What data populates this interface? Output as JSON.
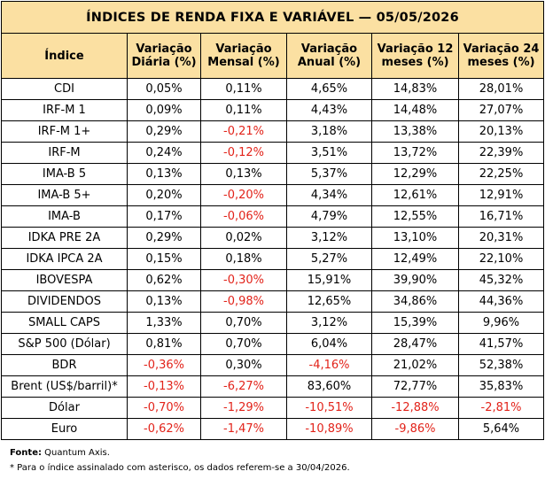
{
  "title": "ÍNDICES DE RENDA FIXA E VARIÁVEL — 05/05/2026",
  "headers": [
    "Índice",
    "Variação Diária (%)",
    "Variação Mensal (%)",
    "Variação Anual (%)",
    "Variação 12 meses (%)",
    "Variação 24 meses (%)"
  ],
  "rows": [
    {
      "name": "CDI",
      "values": [
        "0,05%",
        "0,11%",
        "4,65%",
        "14,83%",
        "28,01%"
      ]
    },
    {
      "name": "IRF-M 1",
      "values": [
        "0,09%",
        "0,11%",
        "4,43%",
        "14,48%",
        "27,07%"
      ]
    },
    {
      "name": "IRF-M 1+",
      "values": [
        "0,29%",
        "-0,21%",
        "3,18%",
        "13,38%",
        "20,13%"
      ]
    },
    {
      "name": "IRF-M",
      "values": [
        "0,24%",
        "-0,12%",
        "3,51%",
        "13,72%",
        "22,39%"
      ]
    },
    {
      "name": "IMA-B 5",
      "values": [
        "0,13%",
        "0,13%",
        "5,37%",
        "12,29%",
        "22,25%"
      ]
    },
    {
      "name": "IMA-B 5+",
      "values": [
        "0,20%",
        "-0,20%",
        "4,34%",
        "12,61%",
        "12,91%"
      ]
    },
    {
      "name": "IMA-B",
      "values": [
        "0,17%",
        "-0,06%",
        "4,79%",
        "12,55%",
        "16,71%"
      ]
    },
    {
      "name": "IDKA PRE 2A",
      "values": [
        "0,29%",
        "0,02%",
        "3,12%",
        "13,10%",
        "20,31%"
      ]
    },
    {
      "name": "IDKA IPCA 2A",
      "values": [
        "0,15%",
        "0,18%",
        "5,27%",
        "12,49%",
        "22,10%"
      ]
    },
    {
      "name": "IBOVESPA",
      "values": [
        "0,62%",
        "-0,30%",
        "15,91%",
        "39,90%",
        "45,32%"
      ]
    },
    {
      "name": "DIVIDENDOS",
      "values": [
        "0,13%",
        "-0,98%",
        "12,65%",
        "34,86%",
        "44,36%"
      ]
    },
    {
      "name": "SMALL CAPS",
      "values": [
        "1,33%",
        "0,70%",
        "3,12%",
        "15,39%",
        "9,96%"
      ]
    },
    {
      "name": "S&P 500 (Dólar)",
      "values": [
        "0,81%",
        "0,70%",
        "6,04%",
        "28,47%",
        "41,57%"
      ]
    },
    {
      "name": "BDR",
      "values": [
        "-0,36%",
        "0,30%",
        "-4,16%",
        "21,02%",
        "52,38%"
      ]
    },
    {
      "name": "Brent (US$/barril)*",
      "values": [
        "-0,13%",
        "-6,27%",
        "83,60%",
        "72,77%",
        "35,83%"
      ]
    },
    {
      "name": "Dólar",
      "values": [
        "-0,70%",
        "-1,29%",
        "-10,51%",
        "-12,88%",
        "-2,81%"
      ]
    },
    {
      "name": "Euro",
      "values": [
        "-0,62%",
        "-1,47%",
        "-10,89%",
        "-9,86%",
        "5,64%"
      ]
    }
  ],
  "source_label": "Fonte:",
  "source_text": " Quantum Axis.",
  "footnote": "* Para o índice assinalado com asterisco, os dados referem-se a 30/04/2026.",
  "colors": {
    "header_bg": "#fbe0a2",
    "negative": "#e2231a",
    "border": "#000000"
  }
}
